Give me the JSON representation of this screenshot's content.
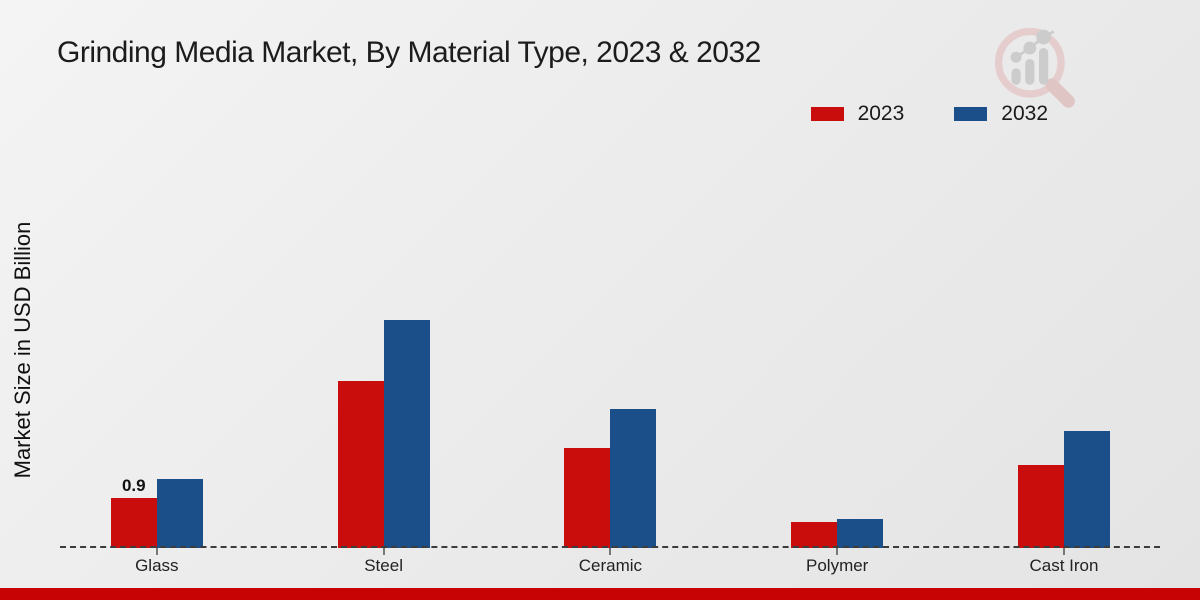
{
  "page": {
    "title": "Grinding Media Market, By Material Type, 2023 & 2032"
  },
  "y_axis_label": "Market Size in USD Billion",
  "legend": {
    "items": [
      {
        "label": "2023",
        "color": "#c90d0d"
      },
      {
        "label": "2032",
        "color": "#1b4f8a"
      }
    ]
  },
  "watermark_icon": "magnifier-growth-chart-logo",
  "footer_bar_color": "#c70303",
  "chart_data": {
    "type": "bar",
    "title": "Grinding Media Market, By Material Type, 2023 & 2032",
    "categories": [
      "Glass",
      "Steel",
      "Ceramic",
      "Polymer",
      "Cast Iron"
    ],
    "series": [
      {
        "name": "2023",
        "color": "#c90d0d",
        "values": [
          0.9,
          3.0,
          1.8,
          0.47,
          1.5
        ]
      },
      {
        "name": "2032",
        "color": "#1b4f8a",
        "values": [
          1.25,
          4.1,
          2.5,
          0.53,
          2.1
        ]
      }
    ],
    "xlabel": "",
    "ylabel": "Market Size in USD Billion",
    "ylim": [
      0,
      4.5
    ],
    "grid": false,
    "y_axis_ticks_visible": false,
    "zero_line_style": "dashed",
    "legend_position": "top-right",
    "data_labels": [
      {
        "series": "2023",
        "category": "Glass",
        "text": "0.9"
      }
    ]
  }
}
